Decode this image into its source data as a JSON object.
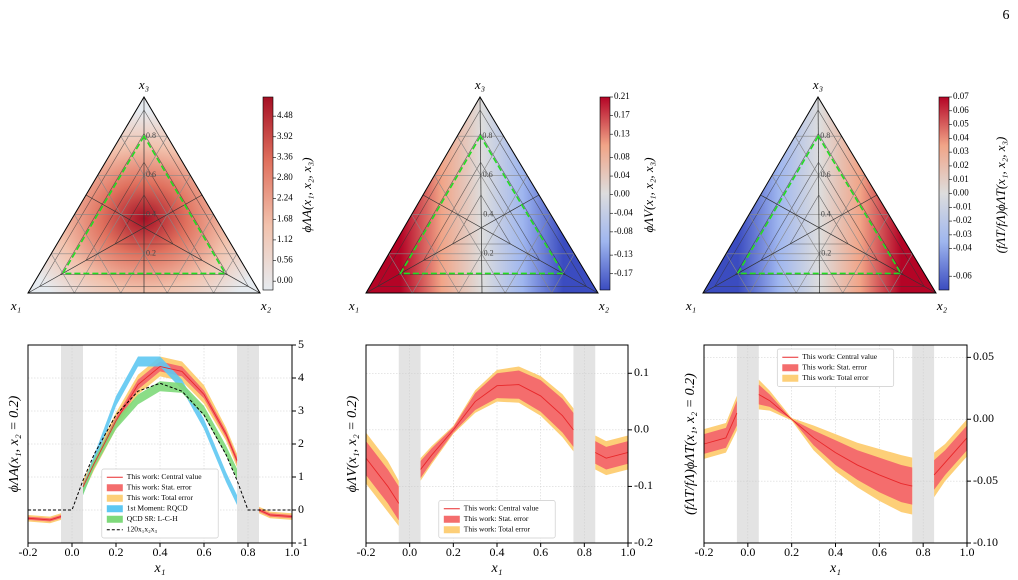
{
  "page_number": "6",
  "chart_data": [
    {
      "type": "ternary",
      "vertex_labels": {
        "top": "x₃",
        "left": "x₁",
        "right": "x₂"
      },
      "colorbar_label": "ϕΛA(x₁, x₂, x₃)",
      "clim": [
        -0.24,
        5.0
      ],
      "cticks": [
        {
          "value": 0,
          "label": "0.00"
        },
        0.56,
        1.12,
        1.68,
        2.24,
        {
          "value": 2.8,
          "label": "2.80"
        },
        3.36,
        3.92,
        4.48
      ],
      "grid_labels": [
        0.8,
        0.6,
        0.4,
        0.2
      ],
      "cmap": [
        "#e6ebf0",
        "#f2c2ad",
        "#e0715e",
        "#a50f24"
      ]
    },
    {
      "type": "ternary",
      "vertex_labels": {
        "top": "x₃",
        "left": "x₁",
        "right": "x₂"
      },
      "colorbar_label": "ϕΛV(x₁, x₂, x₃)",
      "clim": [
        -0.205,
        0.21
      ],
      "cticks": [
        -0.17,
        -0.13,
        -0.08,
        -0.04,
        {
          "value": 0,
          "label": "0.00"
        },
        0.04,
        0.08,
        0.13,
        0.17,
        0.21
      ],
      "grid_labels": [
        0.8,
        0.6,
        0.4,
        0.2
      ],
      "cmap": [
        "#3b4cc0",
        "#9fb6ef",
        "#dddddd",
        "#f1a487",
        "#b40426"
      ]
    },
    {
      "type": "ternary",
      "vertex_labels": {
        "top": "x₃",
        "left": "x₁",
        "right": "x₂"
      },
      "colorbar_label": "(fΛT/fΛ)ϕΛT(x₁, x₂, x₃)",
      "clim": [
        -0.07,
        0.07
      ],
      "cticks": [
        -0.06,
        -0.04,
        -0.03,
        -0.02,
        -0.01,
        {
          "value": 0,
          "label": "0.00"
        },
        0.01,
        0.02,
        0.03,
        0.04,
        0.05,
        0.06,
        0.07
      ],
      "grid_labels": [
        0.8,
        0.6,
        0.4,
        0.2
      ],
      "cmap": [
        "#3b4cc0",
        "#9fb6ef",
        "#dddddd",
        "#f1a487",
        "#b40426"
      ]
    },
    {
      "type": "line",
      "x_label": "x₁",
      "y_label": "ϕΛA(x₁, x₂ = 0.2)",
      "x": [
        -0.2,
        -0.1,
        -0.05,
        0,
        0.05,
        0.1,
        0.2,
        0.3,
        0.4,
        0.5,
        0.6,
        0.7,
        0.75,
        0.8,
        0.85,
        0.9,
        1.0
      ],
      "xlim": [
        -0.2,
        1.0
      ],
      "xticks": [
        -0.2,
        {
          "value": 0,
          "label": "0.0"
        },
        0.2,
        0.4,
        0.6,
        0.8,
        {
          "value": 1,
          "label": "1.0"
        }
      ],
      "ylim": [
        -1,
        5
      ],
      "yticks": [
        -1,
        0,
        1,
        2,
        3,
        4,
        5
      ],
      "grid": true,
      "legend": "lower center",
      "shaded_regions": [
        [
          -0.05,
          0.05
        ],
        [
          0.75,
          0.85
        ]
      ],
      "series": [
        {
          "name": "This work: Central value",
          "color": "#e8282b",
          "values": [
            -0.25,
            -0.3,
            -0.2,
            null,
            0.7,
            1.4,
            2.7,
            3.8,
            4.35,
            4.2,
            3.5,
            2.3,
            1.5,
            null,
            0.0,
            -0.15,
            -0.2
          ]
        },
        {
          "name": "This work: Stat. error",
          "color": "#f46d6d",
          "errors": [
            0.05,
            0.05,
            0.05,
            null,
            0.1,
            0.1,
            0.12,
            0.15,
            0.15,
            0.15,
            0.12,
            0.1,
            0.1,
            null,
            0.05,
            0.05,
            0.05
          ]
        },
        {
          "name": "This work: Total error",
          "color": "#fdcf78",
          "errors": [
            0.1,
            0.1,
            0.1,
            null,
            0.2,
            0.2,
            0.25,
            0.3,
            0.3,
            0.3,
            0.28,
            0.2,
            0.2,
            null,
            0.1,
            0.1,
            0.1
          ]
        },
        {
          "name": "1st Moment: RQCD",
          "color": "#5ec8f2",
          "values": [
            null,
            null,
            null,
            null,
            0.6,
            1.5,
            3.3,
            4.5,
            4.5,
            3.8,
            2.6,
            1.0,
            0.3,
            null,
            null,
            null,
            null
          ],
          "errors": [
            null,
            null,
            null,
            null,
            0.15,
            0.15,
            0.15,
            0.15,
            0.15,
            0.15,
            0.15,
            0.15,
            0.15,
            null,
            null,
            null,
            null
          ]
        },
        {
          "name": "QCD SR: L-C-H",
          "color": "#7ed97a",
          "values": [
            null,
            null,
            null,
            null,
            0.6,
            1.4,
            2.6,
            3.35,
            3.75,
            3.7,
            3.0,
            1.8,
            1.1,
            null,
            null,
            null,
            null
          ],
          "errors": [
            null,
            null,
            null,
            null,
            0.15,
            0.15,
            0.15,
            0.15,
            0.15,
            0.15,
            0.15,
            0.15,
            0.15,
            null,
            null,
            null,
            null
          ]
        },
        {
          "name": "120x₁x₂x₃",
          "color": "#000000",
          "dash": true,
          "values": [
            0,
            0,
            0,
            0,
            0.9,
            1.68,
            2.88,
            3.6,
            3.84,
            3.6,
            2.88,
            1.68,
            0.9,
            0,
            0,
            0,
            0
          ]
        }
      ]
    },
    {
      "type": "line",
      "x_label": "x₁",
      "y_label": "ϕΛV(x₁, x₂ = 0.2)",
      "x": [
        -0.2,
        -0.1,
        -0.05,
        0,
        0.05,
        0.1,
        0.2,
        0.3,
        0.4,
        0.5,
        0.6,
        0.7,
        0.75,
        0.8,
        0.85,
        0.9,
        1.0
      ],
      "xlim": [
        -0.2,
        1.0
      ],
      "xticks": [
        -0.2,
        {
          "value": 0,
          "label": "0.0"
        },
        0.2,
        0.4,
        0.6,
        0.8,
        {
          "value": 1,
          "label": "1.0"
        }
      ],
      "ylim": [
        -0.2,
        0.15
      ],
      "yticks": [
        -0.2,
        -0.1,
        {
          "value": 0,
          "label": "0.0"
        },
        0.1
      ],
      "grid": true,
      "legend": "lower center",
      "shaded_regions": [
        [
          -0.05,
          0.05
        ],
        [
          0.75,
          0.85
        ]
      ],
      "series": [
        {
          "name": "This work: Central value",
          "color": "#e8282b",
          "values": [
            -0.05,
            -0.1,
            -0.13,
            null,
            -0.07,
            -0.045,
            0.0,
            0.05,
            0.078,
            0.08,
            0.06,
            0.025,
            0.0,
            null,
            -0.04,
            -0.05,
            -0.04
          ]
        },
        {
          "name": "This work: Stat. error",
          "color": "#f46d6d",
          "errors": [
            0.03,
            0.03,
            0.03,
            null,
            0.015,
            0.012,
            0.005,
            0.015,
            0.022,
            0.025,
            0.028,
            0.03,
            0.03,
            null,
            0.02,
            0.02,
            0.02
          ]
        },
        {
          "name": "This work: Total error",
          "color": "#fdcf78",
          "errors": [
            0.045,
            0.045,
            0.04,
            null,
            0.02,
            0.016,
            0.007,
            0.02,
            0.028,
            0.032,
            0.035,
            0.038,
            0.038,
            null,
            0.03,
            0.03,
            0.03
          ]
        }
      ]
    },
    {
      "type": "line",
      "x_label": "x₁",
      "y_label": "(fΛT/fΛ)ϕΛT(x₁, x₂ = 0.2)",
      "x": [
        -0.2,
        -0.1,
        -0.05,
        0,
        0.05,
        0.1,
        0.2,
        0.3,
        0.4,
        0.5,
        0.6,
        0.7,
        0.75,
        0.8,
        0.85,
        0.9,
        1.0
      ],
      "xlim": [
        -0.2,
        1.0
      ],
      "xticks": [
        -0.2,
        {
          "value": 0,
          "label": "0.0"
        },
        0.2,
        0.4,
        0.6,
        0.8,
        {
          "value": 1,
          "label": "1.0"
        }
      ],
      "ylim": [
        -0.1,
        0.06
      ],
      "yticks": [
        {
          "value": -0.1,
          "label": "-0.10"
        },
        -0.05,
        {
          "value": 0,
          "label": "0.00"
        },
        0.05
      ],
      "grid": true,
      "legend": "upper center",
      "shaded_regions": [
        [
          -0.05,
          0.05
        ],
        [
          0.75,
          0.85
        ]
      ],
      "series": [
        {
          "name": "This work: Central value",
          "color": "#e8282b",
          "values": [
            -0.02,
            -0.015,
            0.005,
            null,
            0.02,
            0.015,
            0.0,
            -0.015,
            -0.027,
            -0.037,
            -0.045,
            -0.052,
            -0.054,
            null,
            -0.045,
            -0.035,
            -0.015
          ]
        },
        {
          "name": "This work: Stat. error",
          "color": "#f46d6d",
          "errors": [
            0.008,
            0.008,
            0.01,
            null,
            0.008,
            0.005,
            0.0,
            0.006,
            0.01,
            0.012,
            0.014,
            0.015,
            0.015,
            null,
            0.012,
            0.01,
            0.01
          ]
        },
        {
          "name": "This work: Total error",
          "color": "#fdcf78",
          "errors": [
            0.012,
            0.012,
            0.014,
            null,
            0.012,
            0.008,
            0.001,
            0.01,
            0.015,
            0.018,
            0.021,
            0.023,
            0.023,
            null,
            0.018,
            0.015,
            0.015
          ]
        }
      ]
    }
  ]
}
